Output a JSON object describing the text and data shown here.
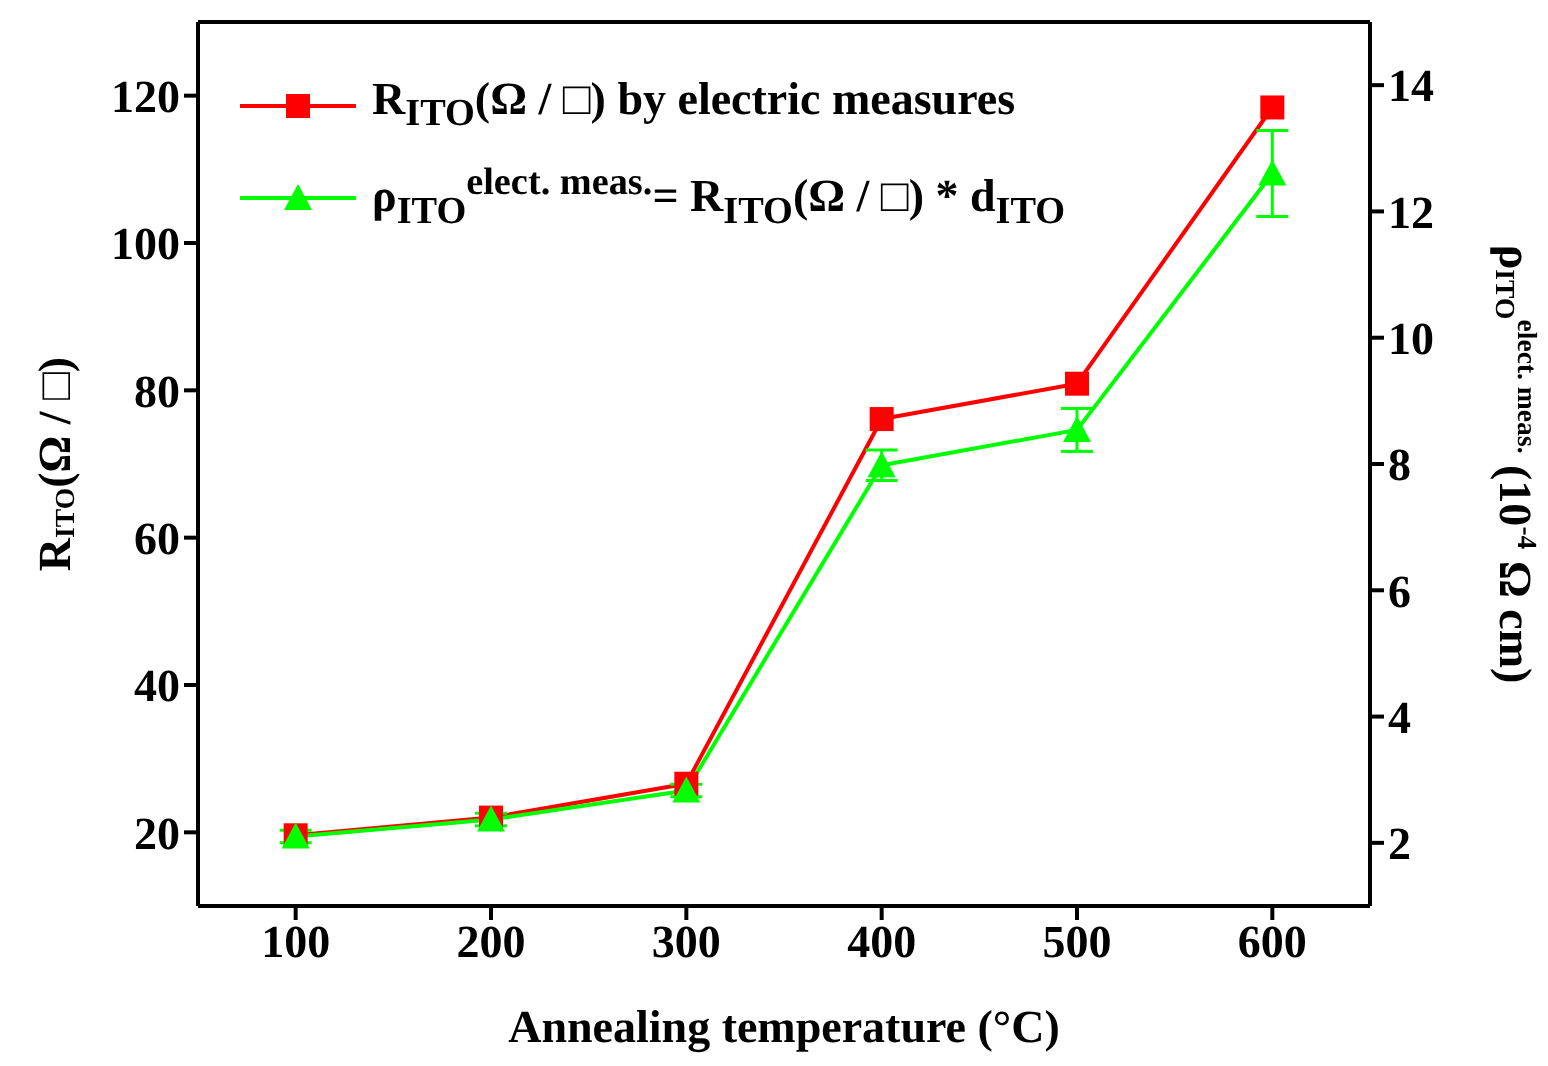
{
  "chart_data": {
    "type": "line",
    "xlabel": "Annealing temperature (°C)",
    "ylabel": "R$_{ITO}$(Ω / □)",
    "y2label": "ρ$_{ITO}$$^{elect. meas.}$ (10$^{-4}$ Ω cm)",
    "x": [
      100,
      200,
      300,
      400,
      500,
      600
    ],
    "xlim": [
      50,
      650
    ],
    "xticks": [
      100,
      200,
      300,
      400,
      500,
      600
    ],
    "ylim": [
      10,
      130
    ],
    "yticks": [
      20,
      40,
      60,
      80,
      100,
      120
    ],
    "y2lim": [
      1,
      15
    ],
    "y2ticks": [
      2,
      4,
      6,
      8,
      10,
      12,
      14
    ],
    "legend": "top left",
    "grid": false,
    "series": [
      {
        "name": "R$_{ITO}$(Ω / □) by electric measures",
        "color": "#ff0000",
        "marker": "square",
        "values": [
          19.6,
          22.0,
          26.6,
          76.1,
          80.9,
          118.4
        ]
      },
      {
        "name": "ρ$_{ITO}$$^{elect. meas.}$= R$_{ITO}$(Ω / □) * d$_{ITO}$",
        "color": "#00ff00",
        "marker": "triangle",
        "axis": "y2",
        "values": [
          2.1,
          2.37,
          2.83,
          7.98,
          8.54,
          12.6
        ],
        "errors": [
          0.1,
          0.1,
          0.1,
          0.24,
          0.34,
          0.68
        ]
      }
    ]
  }
}
